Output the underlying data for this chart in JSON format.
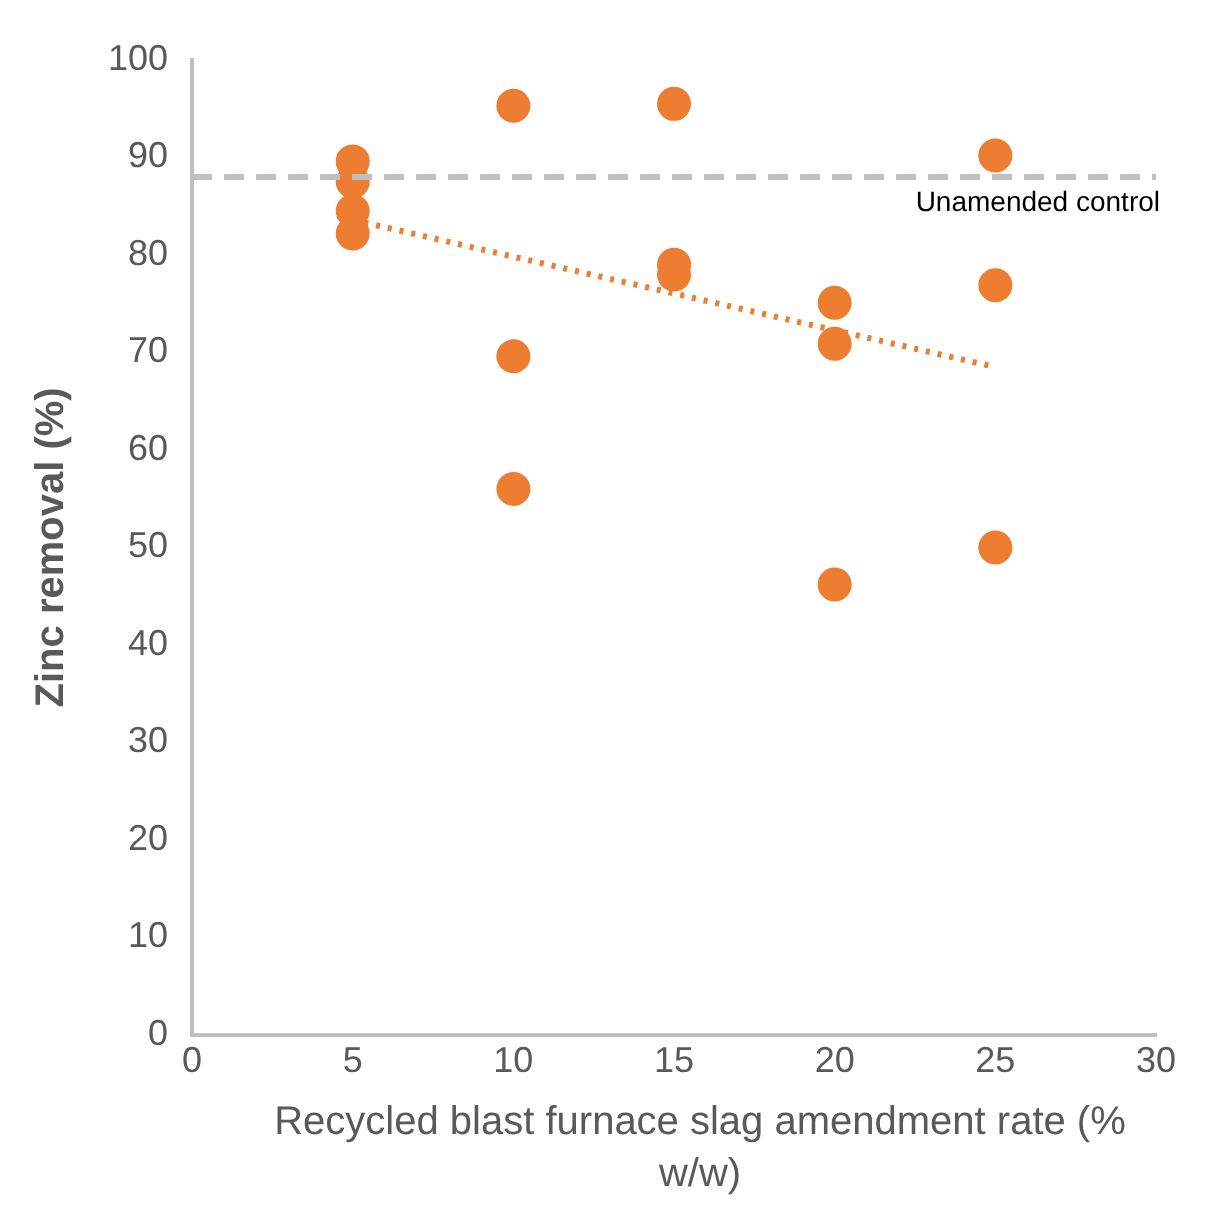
{
  "chart_data": {
    "type": "scatter",
    "xlabel": "Recycled blast furnace slag amendment rate (% w/w)",
    "ylabel": "Zinc removal (%)",
    "xlim": [
      0,
      30
    ],
    "xticks": [
      0,
      5,
      10,
      15,
      20,
      25,
      30
    ],
    "ylim": [
      0,
      100
    ],
    "yticks": [
      0,
      10,
      20,
      30,
      40,
      50,
      60,
      70,
      80,
      90,
      100
    ],
    "grid": false,
    "legend": false,
    "marker": "circle",
    "series": [
      {
        "type": "scatter",
        "color": "#ed7d31",
        "x": [
          5,
          5,
          5,
          5,
          10,
          10,
          10,
          15,
          15,
          15,
          20,
          20,
          20,
          25,
          25,
          25
        ],
        "values": [
          89.6,
          87.5,
          84.5,
          82.2,
          95.3,
          69.6,
          56,
          95.5,
          79,
          78,
          75.1,
          70.9,
          46.2,
          90.2,
          76.9,
          50
        ]
      },
      {
        "type": "line",
        "color": "#ed7d31",
        "x": [
          5,
          25
        ],
        "values": [
          83.6,
          68.5
        ],
        "marker": "none",
        "line_style": "dotted"
      }
    ],
    "ref_lines": [
      {
        "axis": "y",
        "value": 88,
        "label": "Unamended control",
        "color": "#bfbfbf",
        "line_style": "dashed"
      }
    ]
  }
}
